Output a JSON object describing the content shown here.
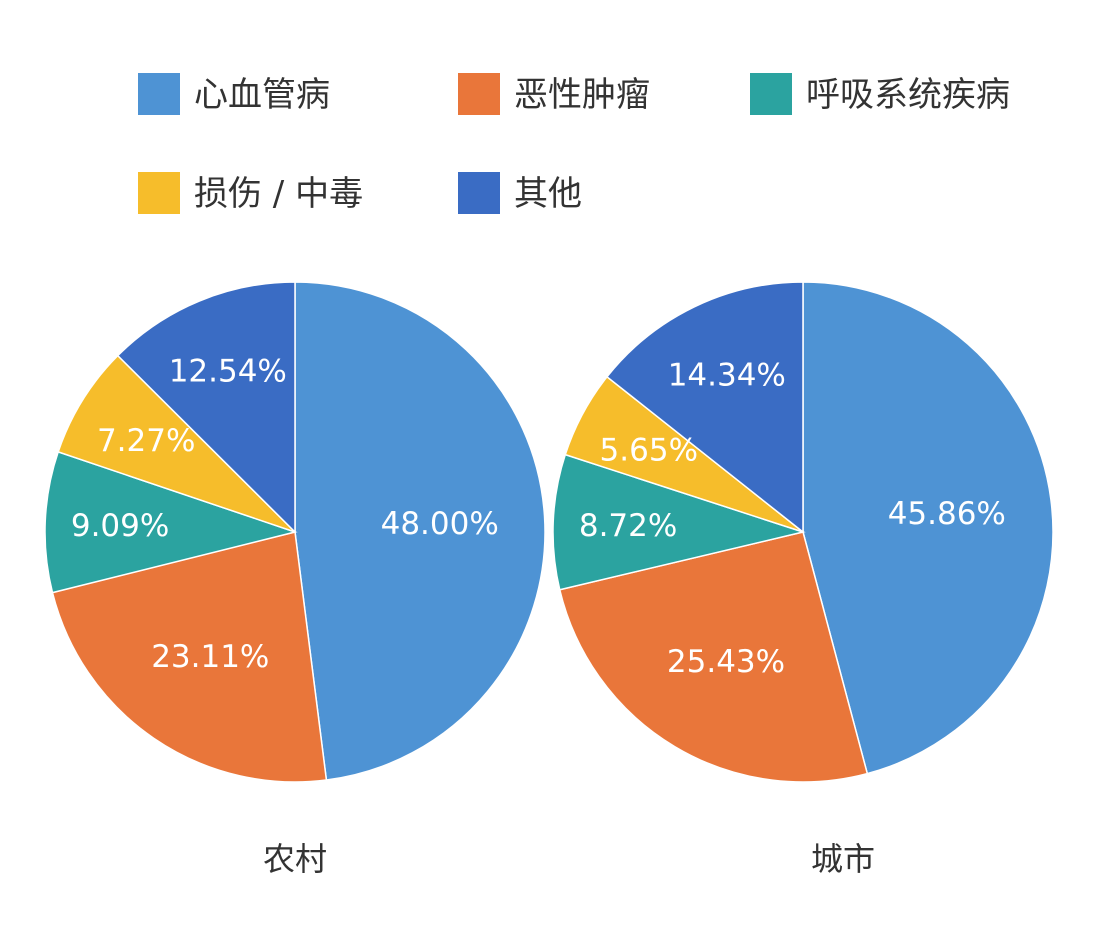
{
  "chart_data": {
    "type": "pie",
    "categories": [
      "心血管病",
      "恶性肿瘤",
      "呼吸系统疾病",
      "损伤 / 中毒",
      "其他"
    ],
    "colors": [
      "#4E93D4",
      "#E9763A",
      "#2BA3A0",
      "#F6BD2B",
      "#3A6CC4"
    ],
    "legend_position": "top",
    "pies": [
      {
        "title": "农村",
        "values": [
          48.0,
          23.11,
          9.09,
          7.27,
          12.54
        ],
        "labels": [
          "48.00%",
          "23.11%",
          "9.09%",
          "7.27%",
          "12.54%"
        ]
      },
      {
        "title": "城市",
        "values": [
          45.86,
          25.43,
          8.72,
          5.65,
          14.34
        ],
        "labels": [
          "45.86%",
          "25.43%",
          "8.72%",
          "5.65%",
          "14.34%"
        ]
      }
    ]
  }
}
